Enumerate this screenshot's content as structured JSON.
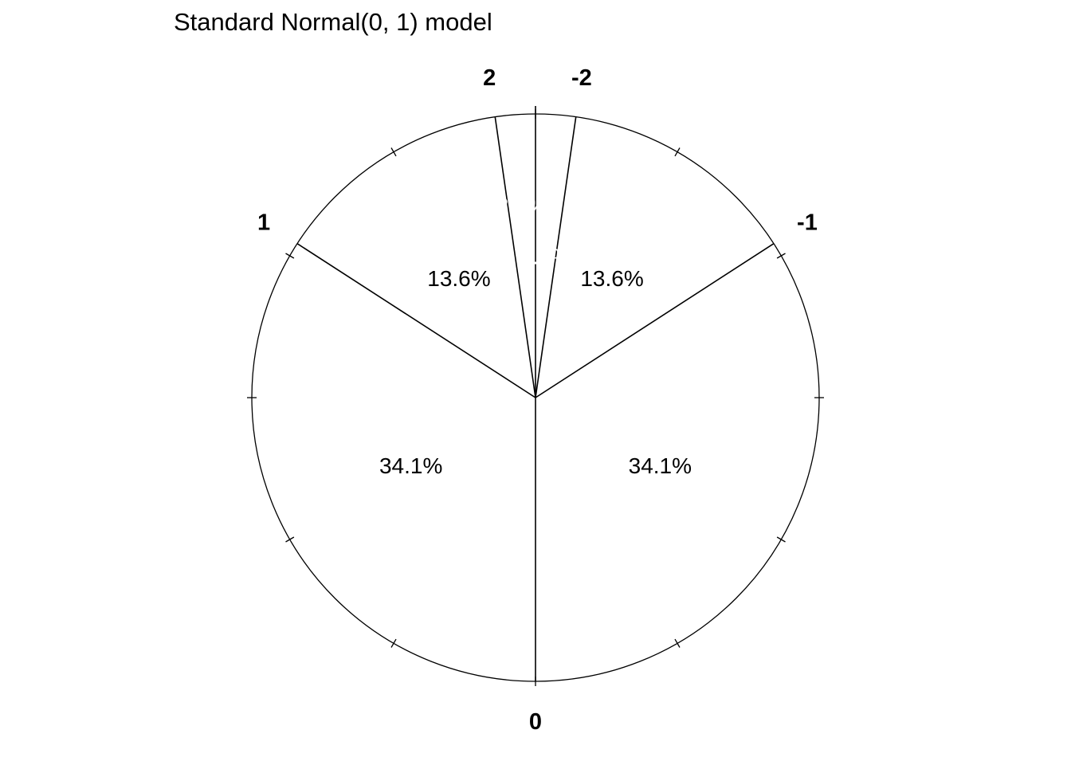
{
  "chart_data": {
    "type": "pie",
    "title": "Standard Normal(0, 1) model",
    "breaks": [
      {
        "z": -2,
        "label": "-2",
        "cum_prob": 0.02275
      },
      {
        "z": -1,
        "label": "-1",
        "cum_prob": 0.15866
      },
      {
        "z": 0,
        "label": "0",
        "cum_prob": 0.5
      },
      {
        "z": 1,
        "label": "1",
        "cum_prob": 0.84134
      },
      {
        "z": 2,
        "label": "2",
        "cum_prob": 0.97725
      }
    ],
    "slices": [
      {
        "from": -3.5,
        "to": -2,
        "value": 2.3,
        "label": "2.3%",
        "label_color": "#ffffff"
      },
      {
        "from": -2,
        "to": -1,
        "value": 13.6,
        "label": "13.6%",
        "label_color": "#000000"
      },
      {
        "from": -1,
        "to": 0,
        "value": 34.1,
        "label": "34.1%",
        "label_color": "#000000"
      },
      {
        "from": 0,
        "to": 1,
        "value": 34.1,
        "label": "34.1%",
        "label_color": "#000000"
      },
      {
        "from": 1,
        "to": 2,
        "value": 13.6,
        "label": "13.6%",
        "label_color": "#000000"
      },
      {
        "from": 2,
        "to": 3.5,
        "value": 2.3,
        "label": "2.3%",
        "label_color": "#ffffff"
      }
    ],
    "tick_count": 12,
    "fill": "#ffffff",
    "line_color": "#000000"
  }
}
